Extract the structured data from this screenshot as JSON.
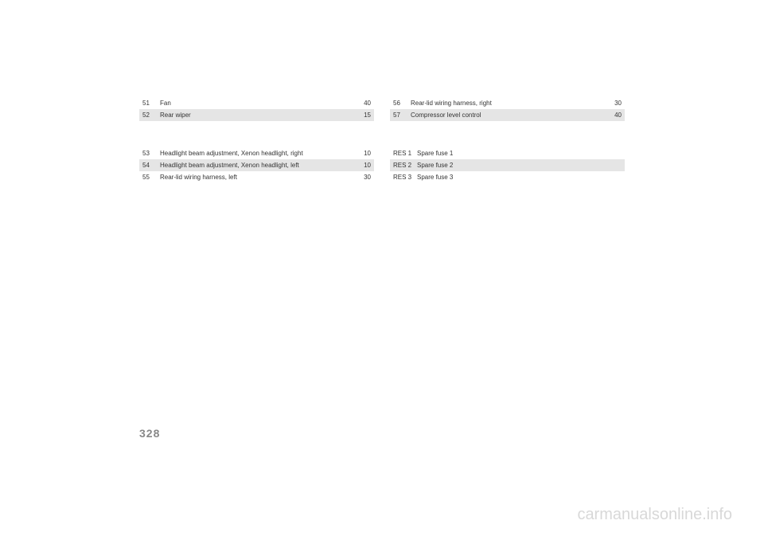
{
  "left_rows": [
    {
      "num": "51",
      "desc": "Fan",
      "amp": "40",
      "shaded": false
    },
    {
      "num": "52",
      "desc": "Rear wiper",
      "amp": "15",
      "shaded": true
    },
    {
      "num": "53",
      "desc": "Headlight beam adjustment, Xenon headlight, right",
      "amp": "10",
      "shaded": false
    },
    {
      "num": "54",
      "desc": "Headlight beam adjustment, Xenon headlight, left",
      "amp": "10",
      "shaded": true
    },
    {
      "num": "55",
      "desc": "Rear-lid wiring harness, left",
      "amp": "30",
      "shaded": false
    }
  ],
  "right_rows": [
    {
      "num": "56",
      "desc": "Rear-lid wiring harness, right",
      "amp": "30",
      "shaded": false
    },
    {
      "num": "57",
      "desc": "Compressor level control",
      "amp": "40",
      "shaded": true
    },
    {
      "num": "RES 1",
      "desc": "Spare fuse 1",
      "amp": "",
      "shaded": false,
      "res": true
    },
    {
      "num": "RES 2",
      "desc": "Spare fuse 2",
      "amp": "",
      "shaded": true,
      "res": true
    },
    {
      "num": "RES 3",
      "desc": "Spare fuse 3",
      "amp": "",
      "shaded": false,
      "res": true
    }
  ],
  "page_number": "328",
  "watermark": "carmanualsonline.info"
}
